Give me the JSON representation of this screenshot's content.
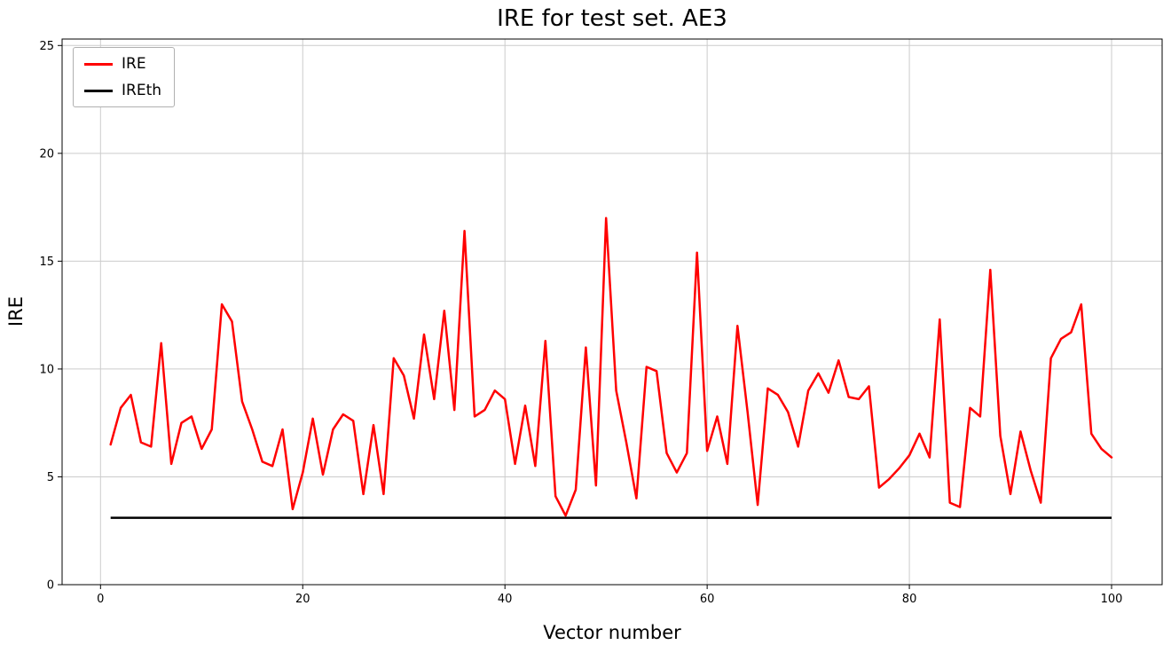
{
  "chart_data": {
    "type": "line",
    "title": "IRE for test set. AE3",
    "xlabel": "Vector number",
    "ylabel": "IRE",
    "xlim": [
      -3.8,
      105
    ],
    "ylim": [
      0,
      25.3
    ],
    "xticks": [
      0,
      20,
      40,
      60,
      80,
      100
    ],
    "yticks": [
      0,
      5,
      10,
      15,
      20,
      25
    ],
    "grid": true,
    "grid_color": "#cccccc",
    "legend_position": "upper left",
    "series": [
      {
        "name": "IRE",
        "color": "#ff0000",
        "x_start": 1,
        "x_step": 1,
        "values": [
          6.5,
          8.2,
          8.8,
          6.6,
          6.4,
          11.2,
          5.6,
          7.5,
          7.8,
          6.3,
          7.2,
          13.0,
          12.2,
          8.5,
          7.2,
          5.7,
          5.5,
          7.2,
          3.5,
          5.2,
          7.7,
          5.1,
          7.2,
          7.9,
          7.6,
          4.2,
          7.4,
          4.2,
          10.5,
          9.7,
          7.7,
          11.6,
          8.6,
          12.7,
          8.1,
          16.4,
          7.8,
          8.1,
          9.0,
          8.6,
          5.6,
          8.3,
          5.5,
          11.3,
          4.1,
          3.2,
          4.4,
          11.0,
          4.6,
          17.0,
          9.0,
          6.6,
          4.0,
          10.1,
          9.9,
          6.1,
          5.2,
          6.1,
          15.4,
          6.2,
          7.8,
          5.6,
          12.0,
          8.0,
          3.7,
          9.1,
          8.8,
          8.0,
          6.4,
          9.0,
          9.8,
          8.9,
          10.4,
          8.7,
          8.6,
          9.2,
          4.5,
          4.9,
          5.4,
          6.0,
          7.0,
          5.9,
          12.3,
          3.8,
          3.6,
          8.2,
          7.8,
          14.6,
          6.9,
          4.2,
          7.1,
          5.3,
          3.8,
          10.5,
          11.4,
          11.7,
          13.0,
          7.0,
          6.3,
          5.9
        ]
      },
      {
        "name": "IREth",
        "color": "#000000",
        "constant": 3.1,
        "x_range": [
          1,
          100
        ]
      }
    ]
  }
}
